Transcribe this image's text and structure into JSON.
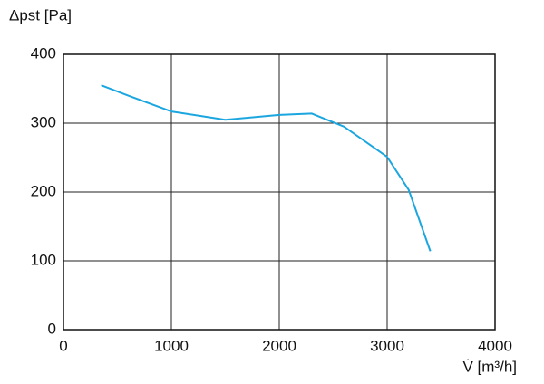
{
  "chart_data": {
    "type": "line",
    "y_label": "Δpst [Pa]",
    "x_label": "V̇ [m³/h]",
    "x": [
      350,
      600,
      1000,
      1500,
      2000,
      2300,
      2600,
      3000,
      3200,
      3400
    ],
    "series": [
      {
        "color": "#1ba6df",
        "values": [
          355,
          340,
          317,
          305,
          312,
          314,
          295,
          251,
          203,
          114
        ]
      }
    ],
    "xlim": [
      0,
      4000
    ],
    "xticks": [
      0,
      1000,
      2000,
      3000,
      4000
    ],
    "ylim": [
      0,
      400
    ],
    "yticks": [
      0,
      100,
      200,
      300,
      400
    ],
    "grid": true
  }
}
